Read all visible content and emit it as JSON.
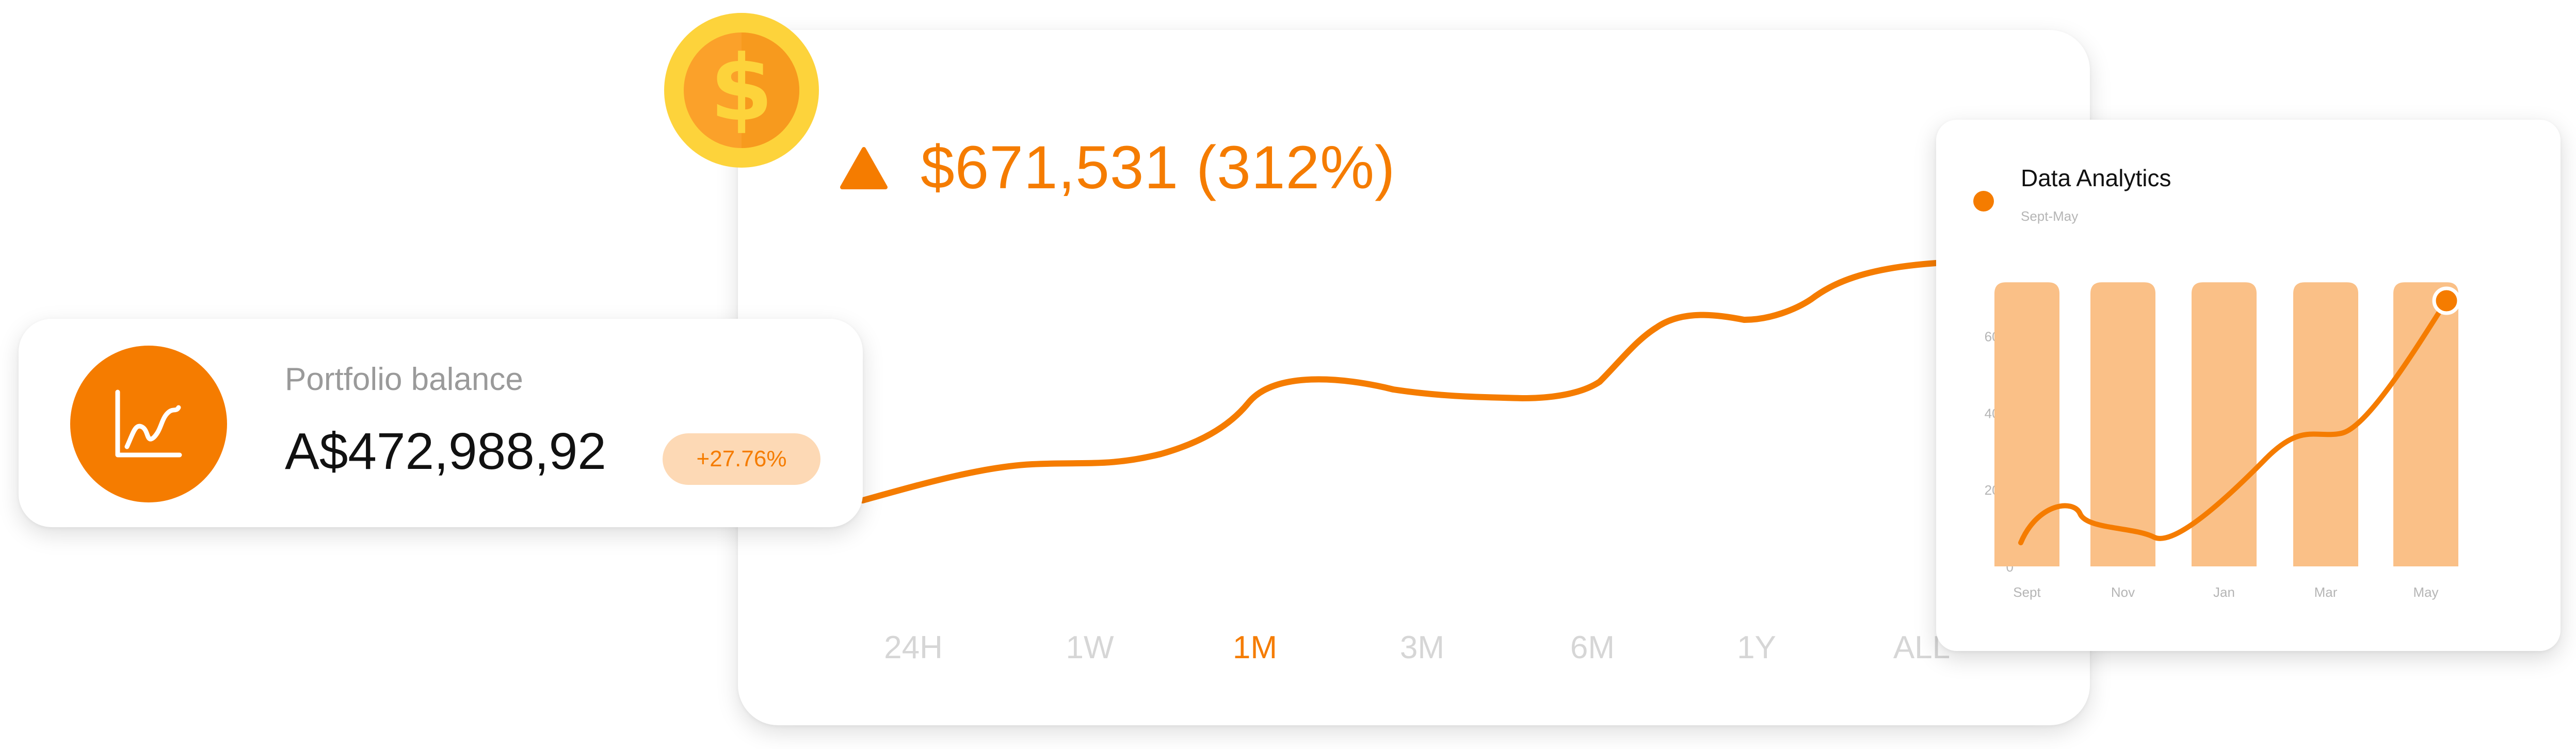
{
  "portfolio": {
    "label": "Portfolio balance",
    "value": "A$472,988,92",
    "change": "+27.76%",
    "icon": "line-chart-icon"
  },
  "main": {
    "gain_text": "$671,531 (312%)",
    "gain_icon": "up-triangle-icon",
    "coin_icon": "dollar-coin-icon",
    "ranges": [
      "24H",
      "1W",
      "1M",
      "3M",
      "6M",
      "1Y",
      "ALL"
    ],
    "active_range": "1M",
    "line_color": "#f57c00"
  },
  "analytics": {
    "title": "Data Analytics",
    "subtitle": "Sept-May"
  },
  "chart_data": {
    "type": "bar",
    "title": "Data Analytics",
    "subtitle": "Sept-May",
    "categories": [
      "Sept",
      "Nov",
      "Jan",
      "Mar",
      "May"
    ],
    "y_ticks": [
      {
        "value": 0,
        "label": "0"
      },
      {
        "value": 200000,
        "label": "200k"
      },
      {
        "value": 400000,
        "label": "400k"
      },
      {
        "value": 600000,
        "label": "600k"
      }
    ],
    "ylim": [
      0,
      700000
    ],
    "series": [
      {
        "type": "bar",
        "values": [
          740000,
          740000,
          740000,
          740000,
          740000
        ],
        "color": "#fac087"
      },
      {
        "type": "line",
        "values": [
          110000,
          210000,
          130000,
          360000,
          700000
        ],
        "color": "#f57c00"
      }
    ],
    "grid": false,
    "legend": "none"
  },
  "colors": {
    "accent": "#f57c00",
    "bar": "#fac087",
    "badge_bg": "#fdd9b5",
    "coin_outer": "#fdd33b",
    "coin_inner": "#fba12a"
  }
}
